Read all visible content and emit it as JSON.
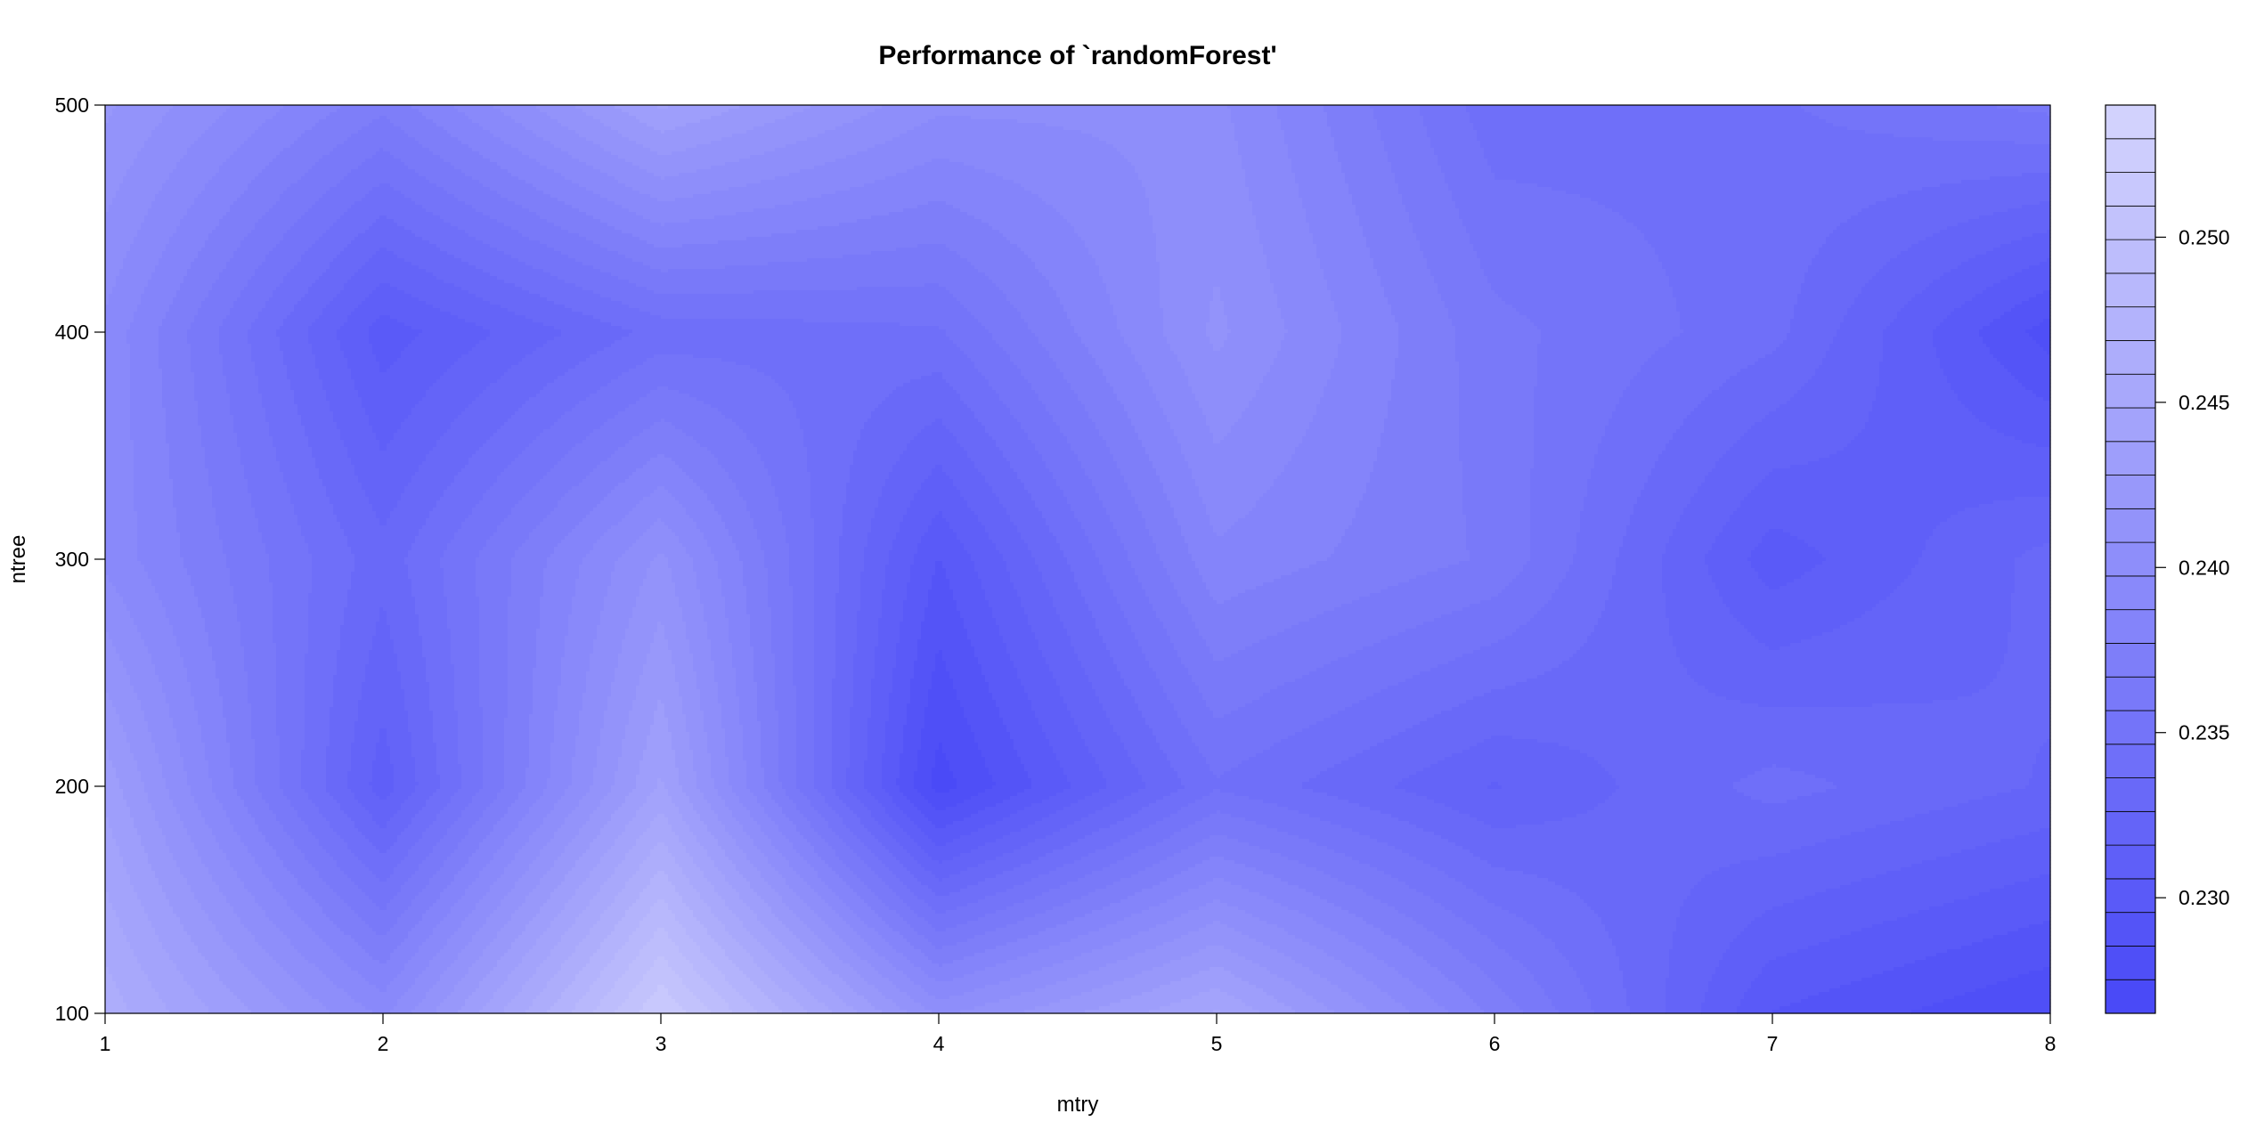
{
  "chart_data": {
    "type": "heatmap",
    "subtype": "filled-contour",
    "title": "Performance of `randomForest'",
    "xlabel": "mtry",
    "ylabel": "ntree",
    "x": [
      1,
      2,
      3,
      4,
      5,
      6,
      7,
      8
    ],
    "y": [
      100,
      200,
      300,
      400,
      500
    ],
    "x_tick_labels": [
      "1",
      "2",
      "3",
      "4",
      "5",
      "6",
      "7",
      "8"
    ],
    "y_tick_labels": [
      "100",
      "200",
      "300",
      "400",
      "500"
    ],
    "xlim": [
      1,
      8
    ],
    "ylim": [
      100,
      500
    ],
    "z_grid_rows_by_ntree": [
      {
        "ntree": 100,
        "values": [
          0.2465,
          0.2395,
          0.252,
          0.2405,
          0.245,
          0.2375,
          0.2295,
          0.2275
        ]
      },
      {
        "ntree": 200,
        "values": [
          0.2435,
          0.231,
          0.244,
          0.227,
          0.2345,
          0.2315,
          0.234,
          0.2325
        ]
      },
      {
        "ntree": 300,
        "values": [
          0.2395,
          0.233,
          0.241,
          0.2295,
          0.2385,
          0.2365,
          0.23,
          0.233
        ]
      },
      {
        "ntree": 400,
        "values": [
          0.2395,
          0.23,
          0.234,
          0.2345,
          0.241,
          0.236,
          0.234,
          0.228
        ]
      },
      {
        "ntree": 500,
        "values": [
          0.242,
          0.237,
          0.244,
          0.24,
          0.24,
          0.234,
          0.2345,
          0.236
        ]
      }
    ],
    "color_scale": {
      "zlim": [
        0.2265,
        0.254
      ],
      "levels": 27,
      "low_color": "#4a4af7",
      "high_color": "#d2d2fd",
      "tick_values": [
        0.23,
        0.235,
        0.24,
        0.245,
        0.25
      ],
      "tick_labels": [
        "0.230",
        "0.235",
        "0.240",
        "0.245",
        "0.250"
      ]
    },
    "grid": false,
    "legend": "right color key"
  }
}
